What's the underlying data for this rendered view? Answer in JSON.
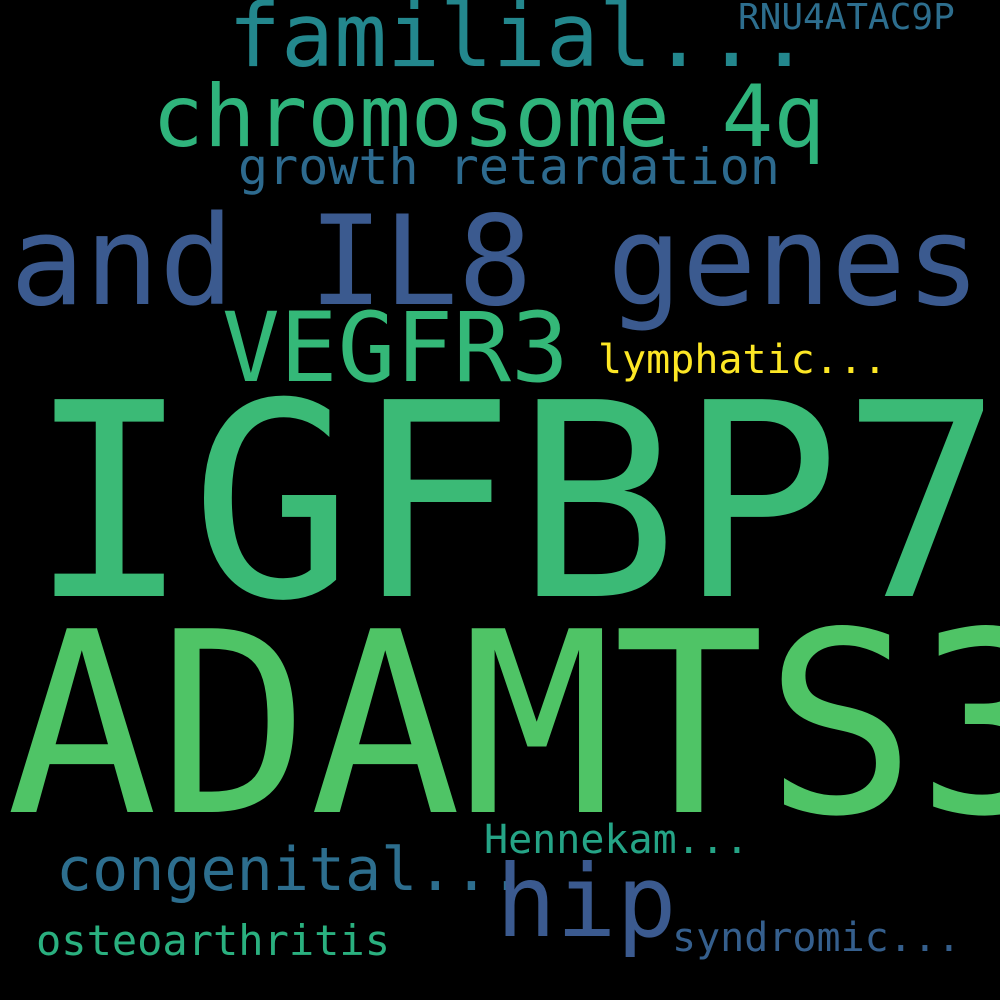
{
  "background": "#000000",
  "words": {
    "familial": {
      "text": "familial...",
      "color": "#23878d"
    },
    "rnu4atac9p": {
      "text": "RNU4ATAC9P",
      "color": "#2d6e8e"
    },
    "chromosome_4q": {
      "text": "chromosome 4q",
      "color": "#2fb47c"
    },
    "growth_retardation": {
      "text": "growth retardation",
      "color": "#2d6a8e"
    },
    "and_il8_genes": {
      "text": "and IL8 genes",
      "color": "#3b5a8f"
    },
    "vegfr3": {
      "text": "VEGFR3",
      "color": "#34b878"
    },
    "lymphatic": {
      "text": "lymphatic...",
      "color": "#fde725"
    },
    "igfbp7": {
      "text": "IGFBP7",
      "color": "#3bba76"
    },
    "adamts3": {
      "text": "ADAMTS3",
      "color": "#4fc466"
    },
    "hennekam": {
      "text": "Hennekam...",
      "color": "#25a486"
    },
    "congenital": {
      "text": "congenital...",
      "color": "#2d6e8e"
    },
    "hip": {
      "text": "hip",
      "color": "#3b5a8f"
    },
    "osteoarthritis": {
      "text": "osteoarthritis",
      "color": "#2ab07f"
    },
    "syndromic": {
      "text": "syndromic...",
      "color": "#355f8d"
    }
  }
}
